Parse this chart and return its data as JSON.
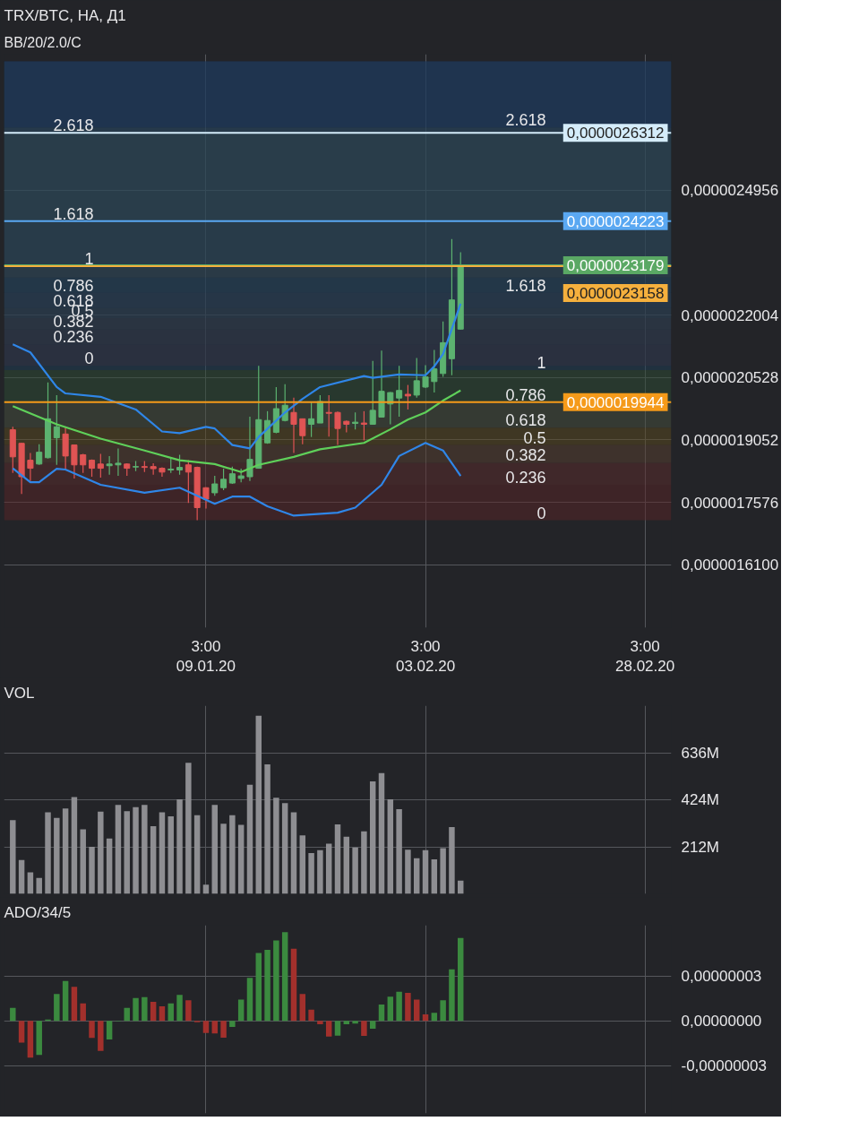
{
  "chart_data": [
    {
      "type": "candlestick",
      "title": "TRX/BTC, НА, Д1",
      "subtitle": "BB/20/2.0/C",
      "x": [
        "2019-12-18",
        "2019-12-19",
        "2019-12-20",
        "2019-12-21",
        "2019-12-22",
        "2019-12-23",
        "2019-12-24",
        "2019-12-25",
        "2019-12-26",
        "2019-12-27",
        "2019-12-28",
        "2019-12-29",
        "2019-12-30",
        "2019-12-31",
        "2020-01-01",
        "2020-01-02",
        "2020-01-03",
        "2020-01-04",
        "2020-01-05",
        "2020-01-06",
        "2020-01-07",
        "2020-01-08",
        "2020-01-09",
        "2020-01-10",
        "2020-01-11",
        "2020-01-12",
        "2020-01-13",
        "2020-01-14",
        "2020-01-15",
        "2020-01-16",
        "2020-01-17",
        "2020-01-18",
        "2020-01-19",
        "2020-01-20",
        "2020-01-21",
        "2020-01-22",
        "2020-01-23",
        "2020-01-24",
        "2020-01-25",
        "2020-01-26",
        "2020-01-27",
        "2020-01-28",
        "2020-01-29",
        "2020-01-30",
        "2020-01-31",
        "2020-02-01",
        "2020-02-02",
        "2020-02-03",
        "2020-02-04",
        "2020-02-05",
        "2020-02-06",
        "2020-02-07"
      ],
      "ohlc": [
        [
          1.929e-06,
          1.936e-06,
          1.827e-06,
          1.865e-06
        ],
        [
          1.897e-06,
          1.898e-06,
          1.777e-06,
          1.818e-06
        ],
        [
          1.857e-06,
          1.874e-06,
          1.808e-06,
          1.838e-06
        ],
        [
          1.848e-06,
          1.895e-06,
          1.846e-06,
          1.876e-06
        ],
        [
          1.863e-06,
          2.041e-06,
          1.861e-06,
          1.955e-06
        ],
        [
          1.91e-06,
          2.011e-06,
          1.846e-06,
          1.936e-06
        ],
        [
          1.919e-06,
          1.936e-06,
          1.837e-06,
          1.867e-06
        ],
        [
          1.893e-06,
          1.893e-06,
          1.814e-06,
          1.846e-06
        ],
        [
          1.87e-06,
          1.872e-06,
          1.827e-06,
          1.846e-06
        ],
        [
          1.857e-06,
          1.859e-06,
          1.818e-06,
          1.838e-06
        ],
        [
          1.848e-06,
          1.872e-06,
          1.816e-06,
          1.838e-06
        ],
        [
          1.844e-06,
          1.867e-06,
          1.823e-06,
          1.848e-06
        ],
        [
          1.846e-06,
          1.885e-06,
          1.82e-06,
          1.85e-06
        ],
        [
          1.848e-06,
          1.85e-06,
          1.82e-06,
          1.838e-06
        ],
        [
          1.841e-06,
          1.855e-06,
          1.831e-06,
          1.842e-06
        ],
        [
          1.842e-06,
          1.855e-06,
          1.829e-06,
          1.84e-06
        ],
        [
          1.842e-06,
          1.85e-06,
          1.823e-06,
          1.837e-06
        ],
        [
          1.838e-06,
          1.84e-06,
          1.818e-06,
          1.829e-06
        ],
        [
          1.834e-06,
          1.861e-06,
          1.827e-06,
          1.836e-06
        ],
        [
          1.834e-06,
          1.87e-06,
          1.823e-06,
          1.84e-06
        ],
        [
          1.846e-06,
          1.857e-06,
          1.756e-06,
          1.829e-06
        ],
        [
          1.84e-06,
          1.842e-06,
          1.715e-06,
          1.745e-06
        ],
        [
          1.792e-06,
          1.793e-06,
          1.743e-06,
          1.765e-06
        ],
        [
          1.78e-06,
          1.82e-06,
          1.773e-06,
          1.801e-06
        ],
        [
          1.792e-06,
          1.837e-06,
          1.786e-06,
          1.812e-06
        ],
        [
          1.803e-06,
          1.842e-06,
          1.801e-06,
          1.825e-06
        ],
        [
          1.814e-06,
          1.837e-06,
          1.805e-06,
          1.82e-06
        ],
        [
          1.818e-06,
          1.96e-06,
          1.808e-06,
          1.859e-06
        ],
        [
          1.838e-06,
          2.08e-06,
          1.837e-06,
          1.953e-06
        ],
        [
          1.898e-06,
          1.973e-06,
          1.896e-06,
          1.951e-06
        ],
        [
          1.923e-06,
          2.03e-06,
          1.921e-06,
          1.979e-06
        ],
        [
          1.951e-06,
          2.037e-06,
          1.949e-06,
          1.987e-06
        ],
        [
          1.97e-06,
          2.005e-06,
          1.874e-06,
          1.942e-06
        ],
        [
          1.955e-06,
          1.955e-06,
          1.895e-06,
          1.915e-06
        ],
        [
          1.942e-06,
          1.996e-06,
          1.912e-06,
          1.955e-06
        ],
        [
          1.945e-06,
          2.011e-06,
          1.945e-06,
          1.996e-06
        ],
        [
          1.97e-06,
          2.011e-06,
          1.913e-06,
          1.968e-06
        ],
        [
          1.97e-06,
          1.972e-06,
          1.893e-06,
          1.932e-06
        ],
        [
          1.949e-06,
          1.951e-06,
          1.923e-06,
          1.942e-06
        ],
        [
          1.944e-06,
          1.97e-06,
          1.93e-06,
          1.947e-06
        ],
        [
          1.945e-06,
          1.973e-06,
          1.904e-06,
          1.942e-06
        ],
        [
          1.942e-06,
          2.092e-06,
          1.941e-06,
          1.975e-06
        ],
        [
          1.959e-06,
          2.116e-06,
          1.958e-06,
          2.02e-06
        ],
        [
          1.99e-06,
          2.018e-06,
          1.942e-06,
          2.017e-06
        ],
        [
          2.004e-06,
          2.08e-06,
          1.96e-06,
          2.022e-06
        ],
        [
          2.013e-06,
          2.035e-06,
          1.977e-06,
          2.009e-06
        ],
        [
          2.011e-06,
          2.099e-06,
          2.005e-06,
          2.045e-06
        ],
        [
          2.03e-06,
          2.082e-06,
          2.028e-06,
          2.054e-06
        ],
        [
          2.043e-06,
          2.118e-06,
          2.017e-06,
          2.073e-06
        ],
        [
          2.062e-06,
          2.185e-06,
          2.054e-06,
          2.135e-06
        ],
        [
          2.097e-06,
          2.38e-06,
          2.058e-06,
          2.236e-06
        ],
        [
          2.167e-06,
          2.349e-06,
          2.166e-06,
          2.3179e-06
        ]
      ],
      "colors": [
        "#e05454",
        "#e05454",
        "#e05454",
        "#5cb270",
        "#5cb270",
        "#5cb270",
        "#e05454",
        "#e05454",
        "#e05454",
        "#e05454",
        "#e05454",
        "#5cb270",
        "#5cb270",
        "#e05454",
        "#5cb270",
        "#e05454",
        "#e05454",
        "#e05454",
        "#5cb270",
        "#5cb270",
        "#e05454",
        "#e05454",
        "#e05454",
        "#5cb270",
        "#5cb270",
        "#5cb270",
        "#5cb270",
        "#5cb270",
        "#5cb270",
        "#5cb270",
        "#5cb270",
        "#5cb270",
        "#e05454",
        "#e05454",
        "#5cb270",
        "#5cb270",
        "#e05454",
        "#e05454",
        "#e05454",
        "#5cb270",
        "#e05454",
        "#5cb270",
        "#5cb270",
        "#5cb270",
        "#5cb270",
        "#e05454",
        "#5cb270",
        "#5cb270",
        "#5cb270",
        "#5cb270",
        "#5cb270",
        "#5cb270"
      ],
      "series": [
        {
          "type": "line",
          "color": "#2f86e8",
          "x": [
            "2019-12-18",
            "2019-12-20",
            "2019-12-23",
            "2019-12-24",
            "2019-12-28",
            "2020-01-01",
            "2020-01-04",
            "2020-01-06",
            "2020-01-09",
            "2020-01-10",
            "2020-01-12",
            "2020-01-14",
            "2020-01-15",
            "2020-01-18",
            "2020-01-20",
            "2020-01-22",
            "2020-01-27",
            "2020-01-28",
            "2020-01-31",
            "2020-02-03",
            "2020-02-04",
            "2020-02-05",
            "2020-02-07"
          ],
          "values": [
            2.131e-06,
            2.112e-06,
            2.03e-06,
            2.015e-06,
            2.007e-06,
            1.977e-06,
            1.925e-06,
            1.921e-06,
            1.936e-06,
            1.932e-06,
            1.893e-06,
            1.885e-06,
            1.912e-06,
            1.97e-06,
            2.002e-06,
            2.03e-06,
            2.056e-06,
            2.052e-06,
            2.06e-06,
            2.058e-06,
            2.079e-06,
            2.108e-06,
            2.227e-06
          ]
        },
        {
          "type": "line",
          "color": "#5fd05a",
          "x": [
            "2019-12-18",
            "2019-12-23",
            "2019-12-28",
            "2020-01-02",
            "2020-01-06",
            "2020-01-10",
            "2020-01-13",
            "2020-01-15",
            "2020-01-19",
            "2020-01-22",
            "2020-01-27",
            "2020-01-30",
            "2020-02-01",
            "2020-02-03",
            "2020-02-05",
            "2020-02-07"
          ],
          "values": [
            1.985e-06,
            1.942e-06,
            1.908e-06,
            1.88e-06,
            1.857e-06,
            1.848e-06,
            1.829e-06,
            1.846e-06,
            1.865e-06,
            1.883e-06,
            1.898e-06,
            1.93e-06,
            1.953e-06,
            1.97e-06,
            1.998e-06,
            2.022e-06
          ]
        },
        {
          "type": "line",
          "color": "#2f86e8",
          "x": [
            "2019-12-18",
            "2019-12-20",
            "2019-12-21",
            "2019-12-23",
            "2019-12-24",
            "2019-12-28",
            "2020-01-02",
            "2020-01-06",
            "2020-01-10",
            "2020-01-12",
            "2020-01-14",
            "2020-01-16",
            "2020-01-19",
            "2020-01-24",
            "2020-01-26",
            "2020-01-29",
            "2020-01-31",
            "2020-02-03",
            "2020-02-05",
            "2020-02-07"
          ],
          "values": [
            1.838e-06,
            1.805e-06,
            1.805e-06,
            1.837e-06,
            1.835e-06,
            1.799e-06,
            1.78e-06,
            1.792e-06,
            1.754e-06,
            1.771e-06,
            1.771e-06,
            1.748e-06,
            1.726e-06,
            1.733e-06,
            1.745e-06,
            1.799e-06,
            1.867e-06,
            1.898e-06,
            1.88e-06,
            1.82e-06
          ]
        }
      ],
      "xlim": [
        "2019-12-17",
        "2020-03-02"
      ],
      "ylim": [
        1.461e-06,
        2.817e-06
      ],
      "xticks": [
        {
          "value": "2020-01-09",
          "label": "3:00\n09.01.20"
        },
        {
          "value": "2020-02-03",
          "label": "3:00\n03.02.20"
        },
        {
          "value": "2020-02-28",
          "label": "3:00\n28.02.20"
        }
      ],
      "yticks": [
        {
          "value": 1.61e-06,
          "label": "0,0000016100"
        },
        {
          "value": 1.7576e-06,
          "label": "0,0000017576"
        },
        {
          "value": 1.9052e-06,
          "label": "0,0000019052"
        },
        {
          "value": 2.0528e-06,
          "label": "0,0000020528"
        },
        {
          "value": 2.2004e-06,
          "label": "0,0000022004"
        },
        {
          "value": 2.4956e-06,
          "label": "0,0000024956"
        }
      ],
      "grid": true,
      "ref_lines": [
        {
          "axis": "y",
          "value": 2.6312e-06,
          "label": "0,0000026312",
          "color": "#d4ecfa"
        },
        {
          "axis": "y",
          "value": 2.4223e-06,
          "label": "0,0000024223",
          "color": "#5aa8f2"
        },
        {
          "axis": "y",
          "value": 2.3179e-06,
          "label": "0,0000023179",
          "color": "#5aa864"
        },
        {
          "axis": "y",
          "value": 2.3158e-06,
          "label": "0,0000023158",
          "color": "#f5b03d"
        },
        {
          "axis": "y",
          "value": 1.9944e-06,
          "label": "0,0000019944",
          "color": "#f59a1a"
        }
      ],
      "bands": [
        {
          "axis": "y",
          "from": 2.08e-06,
          "to": 2.131e-06,
          "label": "0",
          "color": "#4a2228"
        },
        {
          "axis": "y",
          "from": 2.131e-06,
          "to": 2.167e-06,
          "label": "0.236",
          "color": "#4a2a2c"
        },
        {
          "axis": "y",
          "from": 2.167e-06,
          "to": 2.193e-06,
          "label": "0.382",
          "color": "#4a3030"
        },
        {
          "axis": "y",
          "from": 2.193e-06,
          "to": 2.217e-06,
          "label": "0.5",
          "color": "#433a3e"
        },
        {
          "axis": "y",
          "from": 2.217e-06,
          "to": 2.253e-06,
          "label": "0.618",
          "color": "#3c3a48"
        },
        {
          "axis": "y",
          "from": 2.253e-06,
          "to": 2.3158e-06,
          "label": "0.786",
          "color": "#2e3c4e"
        },
        {
          "axis": "y",
          "from": 2.3158e-06,
          "to": 2.4223e-06,
          "label": "1",
          "color": "#25425a"
        },
        {
          "axis": "y",
          "from": 2.4223e-06,
          "to": 2.6312e-06,
          "label": "1.618",
          "color": "#2a4a5e"
        },
        {
          "axis": "y",
          "from": 2.6312e-06,
          "to": 2.8e-06,
          "label": "2.618",
          "color": "#1e3a5c"
        },
        {
          "axis": "y",
          "from": 1.715e-06,
          "to": 1.799e-06,
          "label": "0",
          "color": "#5a2326"
        },
        {
          "axis": "y",
          "from": 1.799e-06,
          "to": 1.851e-06,
          "label": "0.236",
          "color": "#5e2b2b"
        },
        {
          "axis": "y",
          "from": 1.851e-06,
          "to": 1.893e-06,
          "label": "0.382",
          "color": "#5a4030"
        },
        {
          "axis": "y",
          "from": 1.893e-06,
          "to": 1.934e-06,
          "label": "0.5",
          "color": "#5c4a1e"
        },
        {
          "axis": "y",
          "from": 1.934e-06,
          "to": 1.994e-06,
          "label": "0.618",
          "color": "#48503e"
        },
        {
          "axis": "y",
          "from": 1.994e-06,
          "to": 2.07e-06,
          "label": "0.786",
          "color": "#2e4c33"
        },
        {
          "axis": "y",
          "from": 2.07e-06,
          "to": 2.289e-06,
          "label": "1",
          "color": "#1d3d55"
        },
        {
          "axis": "y",
          "from": 2.289e-06,
          "to": 2.644e-06,
          "label": "1.618",
          "color": "#2c4452"
        },
        {
          "axis": "y",
          "from": 2.644e-06,
          "to": 2.8e-06,
          "label": "2.618",
          "color": "#1e3a5c"
        }
      ]
    },
    {
      "type": "bar",
      "title": "VOL",
      "color": "#8e8e92",
      "x": [
        "2019-12-18",
        "2019-12-19",
        "2019-12-20",
        "2019-12-21",
        "2019-12-22",
        "2019-12-23",
        "2019-12-24",
        "2019-12-25",
        "2019-12-26",
        "2019-12-27",
        "2019-12-28",
        "2019-12-29",
        "2019-12-30",
        "2019-12-31",
        "2020-01-01",
        "2020-01-02",
        "2020-01-03",
        "2020-01-04",
        "2020-01-05",
        "2020-01-06",
        "2020-01-07",
        "2020-01-08",
        "2020-01-09",
        "2020-01-10",
        "2020-01-11",
        "2020-01-12",
        "2020-01-13",
        "2020-01-14",
        "2020-01-15",
        "2020-01-16",
        "2020-01-17",
        "2020-01-18",
        "2020-01-19",
        "2020-01-20",
        "2020-01-21",
        "2020-01-22",
        "2020-01-23",
        "2020-01-24",
        "2020-01-25",
        "2020-01-26",
        "2020-01-27",
        "2020-01-28",
        "2020-01-29",
        "2020-01-30",
        "2020-01-31",
        "2020-02-01",
        "2020-02-02",
        "2020-02-03",
        "2020-02-04",
        "2020-02-05",
        "2020-02-06",
        "2020-02-07"
      ],
      "values": [
        333000000.0,
        153000000.0,
        97000000.0,
        72000000.0,
        368000000.0,
        343000000.0,
        386000000.0,
        437000000.0,
        291000000.0,
        213000000.0,
        371000000.0,
        250000000.0,
        402000000.0,
        373000000.0,
        392000000.0,
        402000000.0,
        306000000.0,
        368000000.0,
        350000000.0,
        427000000.0,
        592000000.0,
        355000000.0,
        41000000.0,
        402000000.0,
        317000000.0,
        355000000.0,
        312000000.0,
        493000000.0,
        804000000.0,
        585000000.0,
        434000000.0,
        410000000.0,
        368000000.0,
        264000000.0,
        184000000.0,
        197000000.0,
        227000000.0,
        314000000.0,
        258000000.0,
        209000000.0,
        282000000.0,
        508000000.0,
        545000000.0,
        427000000.0,
        383000000.0,
        199000000.0,
        161000000.0,
        197000000.0,
        156000000.0,
        206000000.0,
        302000000.0,
        60000000.0
      ],
      "xlim": [
        "2019-12-17",
        "2020-03-02"
      ],
      "ylim": [
        0,
        850000000.0
      ],
      "xticks": [
        {
          "value": "2020-01-09",
          "label": null
        },
        {
          "value": "2020-02-03",
          "label": null
        },
        {
          "value": "2020-02-28",
          "label": null
        }
      ],
      "yticks": [
        {
          "value": 212000000.0,
          "label": "212M"
        },
        {
          "value": 424000000.0,
          "label": "424M"
        },
        {
          "value": 636000000.0,
          "label": "636M"
        }
      ],
      "grid": true,
      "tick_labels": "y"
    },
    {
      "type": "bar",
      "title": "ADO/34/5",
      "x": [
        "2019-12-18",
        "2019-12-19",
        "2019-12-20",
        "2019-12-21",
        "2019-12-22",
        "2019-12-23",
        "2019-12-24",
        "2019-12-25",
        "2019-12-26",
        "2019-12-27",
        "2019-12-28",
        "2019-12-29",
        "2019-12-30",
        "2019-12-31",
        "2020-01-01",
        "2020-01-02",
        "2020-01-03",
        "2020-01-04",
        "2020-01-05",
        "2020-01-06",
        "2020-01-07",
        "2020-01-08",
        "2020-01-09",
        "2020-01-10",
        "2020-01-11",
        "2020-01-12",
        "2020-01-13",
        "2020-01-14",
        "2020-01-15",
        "2020-01-16",
        "2020-01-17",
        "2020-01-18",
        "2020-01-19",
        "2020-01-20",
        "2020-01-21",
        "2020-01-22",
        "2020-01-23",
        "2020-01-24",
        "2020-01-25",
        "2020-01-26",
        "2020-01-27",
        "2020-01-28",
        "2020-01-29",
        "2020-01-30",
        "2020-01-31",
        "2020-02-01",
        "2020-02-02",
        "2020-02-03",
        "2020-02-04",
        "2020-02-05",
        "2020-02-06",
        "2020-02-07"
      ],
      "values": [
        8.6e-09,
        -1.46e-08,
        -2.47e-08,
        -2.28e-08,
        8e-10,
        1.79e-08,
        2.67e-08,
        2.28e-08,
        1.17e-08,
        -1.15e-08,
        -2.01e-08,
        -1.25e-08,
        -3e-10,
        8.6e-09,
        1.52e-08,
        1.58e-08,
        1.27e-08,
        9.7e-09,
        1.17e-08,
        1.73e-08,
        1.38e-08,
        -1e-09,
        -8.2e-09,
        -8.4e-09,
        -1.13e-08,
        -4.1e-09,
        1.42e-08,
        2.88e-08,
        4.54e-08,
        4.75e-08,
        5.38e-08,
        5.94e-08,
        4.83e-08,
        1.79e-08,
        7.4e-09,
        -2.3e-09,
        -1.05e-08,
        -9.9e-09,
        -2.3e-09,
        -1.8e-09,
        -1.01e-08,
        -5.3e-09,
        1.09e-08,
        1.62e-08,
        1.95e-08,
        1.87e-08,
        1.42e-08,
        4.3e-09,
        5.3e-09,
        1.38e-08,
        3.45e-08,
        5.55e-08
      ],
      "colors": [
        "#3b8a3f",
        "#a3302c",
        "#a3302c",
        "#3b8a3f",
        "#3b8a3f",
        "#3b8a3f",
        "#3b8a3f",
        "#a3302c",
        "#a3302c",
        "#a3302c",
        "#a3302c",
        "#3b8a3f",
        "#3b8a3f",
        "#3b8a3f",
        "#3b8a3f",
        "#3b8a3f",
        "#a3302c",
        "#a3302c",
        "#3b8a3f",
        "#3b8a3f",
        "#a3302c",
        "#a3302c",
        "#a3302c",
        "#a3302c",
        "#a3302c",
        "#3b8a3f",
        "#3b8a3f",
        "#3b8a3f",
        "#3b8a3f",
        "#3b8a3f",
        "#3b8a3f",
        "#3b8a3f",
        "#a3302c",
        "#a3302c",
        "#a3302c",
        "#a3302c",
        "#a3302c",
        "#3b8a3f",
        "#3b8a3f",
        "#3b8a3f",
        "#a3302c",
        "#3b8a3f",
        "#3b8a3f",
        "#3b8a3f",
        "#3b8a3f",
        "#a3302c",
        "#a3302c",
        "#a3302c",
        "#3b8a3f",
        "#3b8a3f",
        "#3b8a3f",
        "#3b8a3f"
      ],
      "xlim": [
        "2019-12-17",
        "2020-03-02"
      ],
      "ylim": [
        -6.2e-08,
        6.4e-08
      ],
      "xticks": [
        {
          "value": "2020-01-09",
          "label": null
        },
        {
          "value": "2020-02-03",
          "label": null
        },
        {
          "value": "2020-02-28",
          "label": null
        }
      ],
      "yticks": [
        {
          "value": -3e-08,
          "label": "-0,00000003"
        },
        {
          "value": 0,
          "label": "0,00000000"
        },
        {
          "value": 3e-08,
          "label": "0,00000003"
        }
      ],
      "grid": true,
      "tick_labels": "y"
    }
  ]
}
